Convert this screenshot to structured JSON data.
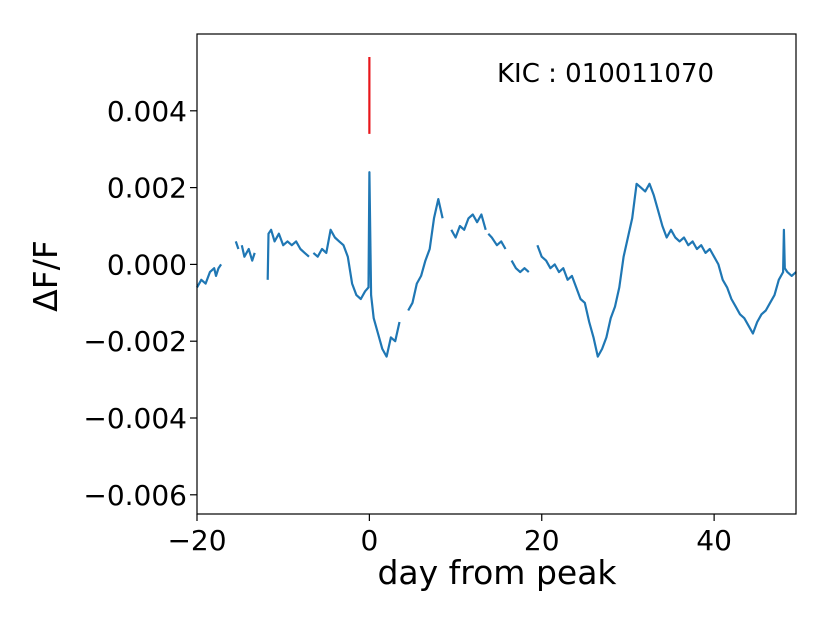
{
  "chart_data": {
    "type": "line",
    "xlabel": "day from peak",
    "ylabel": "ΔF/F",
    "annotation": "KIC : 010011070",
    "xlim": [
      -20,
      49.5
    ],
    "ylim": [
      -0.0065,
      0.006
    ],
    "xticks": [
      -20,
      0,
      20,
      40
    ],
    "xtick_labels": [
      "−20",
      "0",
      "20",
      "40"
    ],
    "yticks": [
      0.004,
      0.002,
      0.0,
      -0.002,
      -0.004,
      -0.006
    ],
    "ytick_labels": [
      "0.004",
      "0.002",
      "0.000",
      "−0.002",
      "−0.004",
      "−0.006"
    ],
    "grid": false,
    "series_color": "#1f77b4",
    "marker_color": "#e8161b",
    "peak_marker": {
      "x": 0,
      "y_top": 0.0054,
      "y_bottom": 0.0034
    },
    "segments": [
      [
        [
          -20,
          -0.0006
        ],
        [
          -19.5,
          -0.0004
        ],
        [
          -19,
          -0.0005
        ],
        [
          -18.5,
          -0.0002
        ],
        [
          -18,
          -0.0001
        ],
        [
          -17.8,
          -0.0003
        ],
        [
          -17.5,
          -0.0001
        ],
        [
          -17.2,
          0.0
        ]
      ],
      [
        [
          -15.5,
          0.0006
        ],
        [
          -15.2,
          0.0004
        ]
      ],
      [
        [
          -14.8,
          0.0005
        ],
        [
          -14.5,
          0.0002
        ],
        [
          -14,
          0.0004
        ],
        [
          -13.6,
          0.0001
        ],
        [
          -13.3,
          0.0003
        ]
      ],
      [
        [
          -11.8,
          -0.0004
        ],
        [
          -11.7,
          0.0008
        ],
        [
          -11.4,
          0.0009
        ],
        [
          -11,
          0.0006
        ],
        [
          -10.5,
          0.0008
        ],
        [
          -10,
          0.0005
        ],
        [
          -9.5,
          0.0006
        ],
        [
          -9,
          0.0005
        ],
        [
          -8.5,
          0.0006
        ],
        [
          -8,
          0.0004
        ],
        [
          -7.5,
          0.0003
        ],
        [
          -7,
          0.0002
        ]
      ],
      [
        [
          -6.5,
          0.0003
        ],
        [
          -6,
          0.0002
        ],
        [
          -5.5,
          0.0004
        ],
        [
          -5,
          0.0003
        ],
        [
          -4.5,
          0.0009
        ],
        [
          -4,
          0.0007
        ],
        [
          -3.5,
          0.0006
        ],
        [
          -3,
          0.0005
        ],
        [
          -2.5,
          0.0002
        ],
        [
          -2,
          -0.0005
        ],
        [
          -1.5,
          -0.0008
        ],
        [
          -1,
          -0.0009
        ],
        [
          -0.5,
          -0.0007
        ],
        [
          -0.1,
          -0.0006
        ],
        [
          0,
          0.0024
        ],
        [
          0.2,
          -0.0008
        ],
        [
          0.5,
          -0.0014
        ],
        [
          1,
          -0.0018
        ],
        [
          1.5,
          -0.0022
        ],
        [
          2,
          -0.0024
        ],
        [
          2.5,
          -0.0019
        ],
        [
          3,
          -0.002
        ],
        [
          3.5,
          -0.0015
        ]
      ],
      [
        [
          4.5,
          -0.0012
        ],
        [
          5,
          -0.001
        ],
        [
          5.5,
          -0.0005
        ],
        [
          6,
          -0.0003
        ],
        [
          6.5,
          0.0001
        ],
        [
          7,
          0.0004
        ],
        [
          7.5,
          0.0012
        ],
        [
          8,
          0.0017
        ],
        [
          8.5,
          0.0012
        ]
      ],
      [
        [
          9.5,
          0.0009
        ],
        [
          10,
          0.0007
        ],
        [
          10.5,
          0.001
        ],
        [
          11,
          0.0009
        ],
        [
          11.5,
          0.0012
        ],
        [
          12,
          0.0013
        ],
        [
          12.5,
          0.0011
        ],
        [
          13,
          0.0013
        ],
        [
          13.5,
          0.0009
        ]
      ],
      [
        [
          13.8,
          0.0008
        ],
        [
          14.2,
          0.0007
        ],
        [
          14.8,
          0.0005
        ],
        [
          15.3,
          0.0006
        ],
        [
          15.8,
          0.0004
        ]
      ],
      [
        [
          16.5,
          0.0001
        ],
        [
          17,
          -0.0001
        ],
        [
          17.5,
          -0.0002
        ],
        [
          18,
          -0.0001
        ],
        [
          18.5,
          -0.0002
        ]
      ],
      [
        [
          19.5,
          0.0005
        ],
        [
          20,
          0.0002
        ],
        [
          20.5,
          0.0001
        ],
        [
          21,
          -0.0001
        ],
        [
          21.5,
          0.0
        ],
        [
          22,
          -0.0002
        ],
        [
          22.5,
          -0.0001
        ],
        [
          23,
          -0.0004
        ],
        [
          23.5,
          -0.0003
        ],
        [
          24,
          -0.0006
        ],
        [
          24.5,
          -0.0009
        ],
        [
          25,
          -0.001
        ],
        [
          25.5,
          -0.0015
        ],
        [
          26,
          -0.0019
        ],
        [
          26.5,
          -0.0024
        ],
        [
          27,
          -0.0022
        ],
        [
          27.5,
          -0.0019
        ],
        [
          28,
          -0.0014
        ],
        [
          28.5,
          -0.0011
        ],
        [
          29,
          -0.0006
        ],
        [
          29.5,
          0.0002
        ],
        [
          30,
          0.0007
        ],
        [
          30.5,
          0.0012
        ],
        [
          31,
          0.0021
        ],
        [
          31.5,
          0.002
        ],
        [
          32,
          0.0019
        ],
        [
          32.5,
          0.0021
        ],
        [
          33,
          0.0018
        ],
        [
          33.5,
          0.0014
        ],
        [
          34,
          0.001
        ],
        [
          34.5,
          0.0007
        ],
        [
          35,
          0.0009
        ],
        [
          35.5,
          0.0007
        ],
        [
          36,
          0.0006
        ],
        [
          36.5,
          0.0007
        ],
        [
          37,
          0.0005
        ],
        [
          37.5,
          0.0006
        ],
        [
          38,
          0.0004
        ],
        [
          38.5,
          0.0005
        ],
        [
          39,
          0.0003
        ],
        [
          39.5,
          0.0004
        ],
        [
          40,
          0.0002
        ],
        [
          40.5,
          0.0
        ],
        [
          41,
          -0.0004
        ],
        [
          41.5,
          -0.0006
        ],
        [
          42,
          -0.0009
        ],
        [
          42.5,
          -0.0011
        ],
        [
          43,
          -0.0013
        ],
        [
          43.5,
          -0.0014
        ],
        [
          44,
          -0.0016
        ],
        [
          44.5,
          -0.0018
        ],
        [
          45,
          -0.0015
        ],
        [
          45.5,
          -0.0013
        ],
        [
          46,
          -0.0012
        ],
        [
          46.5,
          -0.001
        ],
        [
          47,
          -0.0008
        ],
        [
          47.5,
          -0.0004
        ],
        [
          48,
          -0.0002
        ],
        [
          48.1,
          0.0009
        ],
        [
          48.2,
          -0.0001
        ],
        [
          48.5,
          -0.0002
        ],
        [
          49,
          -0.0003
        ],
        [
          49.5,
          -0.0002
        ]
      ]
    ]
  }
}
